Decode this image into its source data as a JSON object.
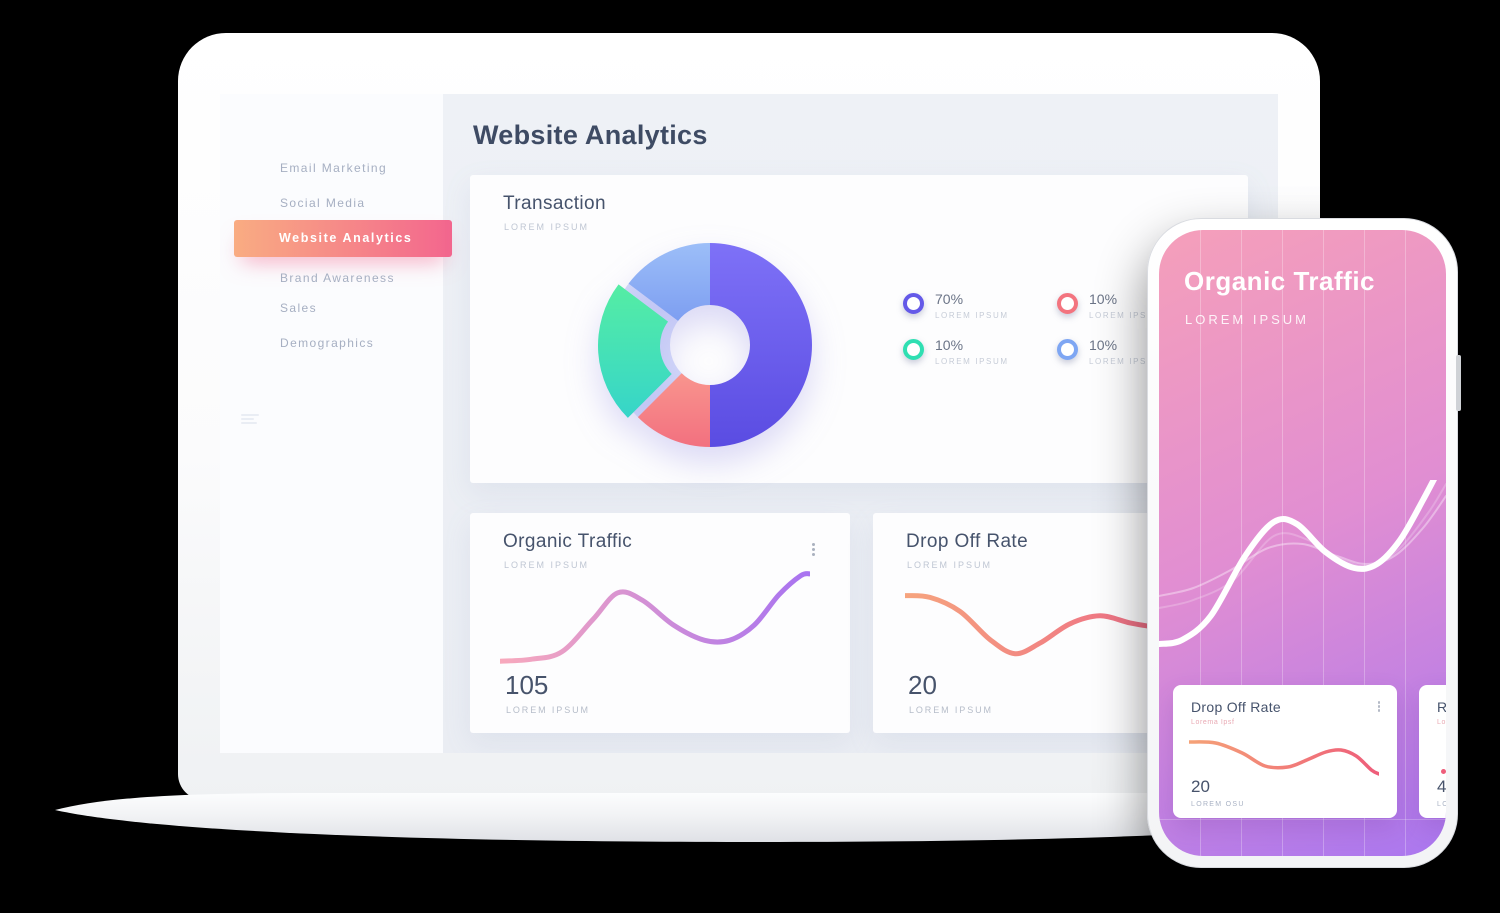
{
  "window": {
    "background": "#000000"
  },
  "dashboard": {
    "header": {
      "title": "Website Analytics"
    },
    "sidebar": {
      "items": [
        {
          "label": "Email Marketing",
          "active": false
        },
        {
          "label": "Social Media",
          "active": false
        },
        {
          "label": "Website Analytics",
          "active": true
        },
        {
          "label": "Brand Awareness",
          "active": false
        },
        {
          "label": "Sales",
          "active": false
        },
        {
          "label": "Demographics",
          "active": false
        }
      ]
    },
    "cards": {
      "transaction": {
        "title": "Transaction",
        "subtitle": "LOREM IPSUM",
        "legend": [
          {
            "value": "70%",
            "label": "LOREM IPSUM",
            "color": "#6459e8"
          },
          {
            "value": "10%",
            "label": "LOREM IPSUM",
            "color": "#f3747f"
          },
          {
            "value": "10%",
            "label": "LOREM IPSUM",
            "color": "#2fdfb2"
          },
          {
            "value": "10%",
            "label": "LOREM IPSUM",
            "color": "#7ea6f3"
          }
        ]
      },
      "organic_traffic": {
        "title": "Organic Traffic",
        "subtitle": "LOREM IPSUM",
        "value": "105",
        "value_label": "LOREM IPSUM"
      },
      "drop_off_rate": {
        "title": "Drop Off Rate",
        "subtitle": "LOREM IPSUM",
        "value": "20",
        "value_label": "LOREM IPSUM"
      }
    }
  },
  "phone": {
    "title": "Organic Traffic",
    "subtitle": "LOREM IPSUM",
    "cards": [
      {
        "title": "Drop Off Rate",
        "subtitle": "Lorema Ipsf",
        "value": "20",
        "value_label": "LOREM OSU"
      },
      {
        "title": "R",
        "subtitle": "Lo",
        "value": "4",
        "value_label": "LO"
      }
    ]
  },
  "colors": {
    "accent_gradient_start": "#f9ac82",
    "accent_gradient_end": "#f3668e",
    "phone_gradient_top": "#f59fba",
    "phone_gradient_mid": "#e18ed2",
    "phone_gradient_bottom": "#aa77ef",
    "title_text": "#3e4b64",
    "sidebar_text": "#a6afc2",
    "card_bg": "#fdfdfe",
    "dashboard_bg": "#edf0f5",
    "sidebar_bg": "#fbfcfe"
  },
  "chart_data": [
    {
      "id": "transaction-donut",
      "type": "pie",
      "title": "Transaction",
      "labels": [
        "LOREM IPSUM",
        "LOREM IPSUM",
        "LOREM IPSUM",
        "LOREM IPSUM"
      ],
      "values": [
        70,
        10,
        10,
        10
      ],
      "unit": "%",
      "colors": [
        "#6459e8",
        "#f3747f",
        "#2fdfb2",
        "#7ea6f3"
      ],
      "legend_position": "right",
      "hole_ratio": 0.39,
      "visual_segments": [
        {
          "from": "#7e71f7",
          "to": "#5a4ce2",
          "a0": 0,
          "a1": 180,
          "explode": 0
        },
        {
          "from": "#f9958e",
          "to": "#f2707f",
          "a0": 180,
          "a1": 225,
          "explode": 0
        },
        {
          "from": "#55eda4",
          "to": "#36d5c9",
          "a0": 225,
          "a1": 307,
          "explode": 10
        },
        {
          "from": "#9cbef8",
          "to": "#7d9ef1",
          "a0": 307,
          "a1": 360,
          "explode": 0
        }
      ],
      "underlay": {
        "color": "#a9b3f3",
        "opacity": 0.5,
        "a0": 210,
        "a1": 332
      }
    },
    {
      "id": "organic-line",
      "type": "line",
      "title": "Organic Traffic",
      "current_value": 105,
      "stroke": {
        "from": "#f8a9bc",
        "to": "#a873f1"
      },
      "stroke_width": 5,
      "axes_visible": false,
      "points": [
        [
          0,
          4
        ],
        [
          10,
          6
        ],
        [
          20,
          14
        ],
        [
          30,
          48
        ],
        [
          38,
          76
        ],
        [
          46,
          68
        ],
        [
          56,
          42
        ],
        [
          66,
          26
        ],
        [
          74,
          26
        ],
        [
          82,
          42
        ],
        [
          90,
          74
        ],
        [
          97,
          94
        ],
        [
          100,
          96
        ]
      ]
    },
    {
      "id": "dropoff-line",
      "type": "line",
      "title": "Drop Off Rate",
      "current_value": 20,
      "stroke": {
        "from": "#f6a47e",
        "to": "#ee6d86"
      },
      "stroke_width": 5,
      "axes_visible": false,
      "points": [
        [
          0,
          80
        ],
        [
          10,
          78
        ],
        [
          22,
          62
        ],
        [
          34,
          30
        ],
        [
          44,
          14
        ],
        [
          54,
          26
        ],
        [
          66,
          48
        ],
        [
          78,
          57
        ],
        [
          90,
          49
        ],
        [
          100,
          44
        ]
      ]
    },
    {
      "id": "phone-wave",
      "type": "line",
      "title": "Organic Traffic (phone hero)",
      "stroke": {
        "solid": "#ffffff"
      },
      "stroke_width": 6,
      "axes_visible": false,
      "points": [
        [
          0,
          18
        ],
        [
          8,
          20
        ],
        [
          18,
          32
        ],
        [
          30,
          62
        ],
        [
          40,
          79
        ],
        [
          48,
          78
        ],
        [
          58,
          64
        ],
        [
          68,
          56
        ],
        [
          76,
          58
        ],
        [
          84,
          70
        ],
        [
          92,
          90
        ],
        [
          100,
          112
        ]
      ],
      "echoes": [
        {
          "opacity": 0.38,
          "stroke_width": 2,
          "points": [
            [
              0,
              42
            ],
            [
              12,
              46
            ],
            [
              25,
              55
            ],
            [
              38,
              66
            ],
            [
              50,
              68
            ],
            [
              62,
              62
            ],
            [
              72,
              58
            ],
            [
              82,
              62
            ],
            [
              92,
              76
            ],
            [
              100,
              92
            ]
          ]
        },
        {
          "opacity": 0.22,
          "stroke_width": 2,
          "points": [
            [
              0,
              36
            ],
            [
              12,
              40
            ],
            [
              26,
              50
            ],
            [
              40,
              72
            ],
            [
              52,
              70
            ],
            [
              64,
              60
            ],
            [
              74,
              57
            ],
            [
              84,
              66
            ],
            [
              94,
              84
            ],
            [
              100,
              98
            ]
          ]
        }
      ]
    },
    {
      "id": "phone-card-line",
      "type": "line",
      "title": "Drop Off Rate (phone card)",
      "current_value": 20,
      "stroke": {
        "from": "#f5a277",
        "to": "#ee5d7a"
      },
      "stroke_width": 3.5,
      "axes_visible": false,
      "points": [
        [
          0,
          78
        ],
        [
          14,
          76
        ],
        [
          28,
          56
        ],
        [
          40,
          30
        ],
        [
          52,
          28
        ],
        [
          62,
          42
        ],
        [
          72,
          58
        ],
        [
          80,
          62
        ],
        [
          88,
          50
        ],
        [
          96,
          22
        ],
        [
          100,
          14
        ]
      ]
    }
  ]
}
